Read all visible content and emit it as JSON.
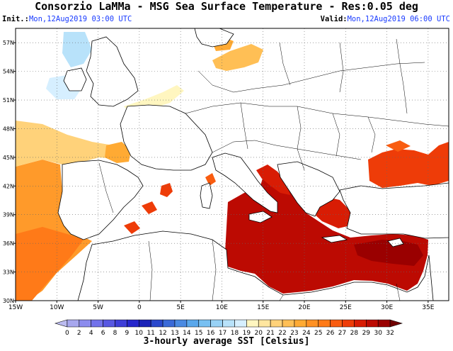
{
  "header": {
    "title": "Consorzio LaMMa - MSG Sea Surface Temperature - Res:0.05 deg",
    "init_label": "Init.:",
    "init_value": "Mon,12Aug2019 03:00 UTC",
    "valid_label": "Valid:",
    "valid_value": "Mon,12Aug2019 06:00 UTC"
  },
  "map": {
    "lon_ticks": [
      "15W",
      "10W",
      "5W",
      "0",
      "5E",
      "10E",
      "15E",
      "20E",
      "25E",
      "30E",
      "35E"
    ],
    "lat_ticks": [
      "57N",
      "54N",
      "51N",
      "48N",
      "45N",
      "42N",
      "39N",
      "36N",
      "33N",
      "30N"
    ],
    "grid": true,
    "coastline_color": "#000000",
    "land_color": "#ffffff"
  },
  "colorbar": {
    "labels": [
      "0",
      "2",
      "4",
      "6",
      "8",
      "9",
      "10",
      "11",
      "12",
      "13",
      "14",
      "15",
      "16",
      "17",
      "18",
      "19",
      "20",
      "21",
      "22",
      "23",
      "24",
      "25",
      "26",
      "27",
      "28",
      "29",
      "30",
      "32"
    ],
    "colors": [
      "#bcbcf0",
      "#a7a7ee",
      "#8c8cee",
      "#7272ea",
      "#5858e2",
      "#3e3ed8",
      "#2626cc",
      "#1a22b8",
      "#2a48cc",
      "#3a6ad8",
      "#4a8ae2",
      "#5aa8ec",
      "#78c0f2",
      "#98d2f6",
      "#b8e2fa",
      "#d6efff",
      "#fff6c0",
      "#ffe6a0",
      "#ffd27a",
      "#ffbf55",
      "#ffaa33",
      "#ff9124",
      "#ff7a18",
      "#f95c10",
      "#ee3c08",
      "#d81c04",
      "#bc0a02",
      "#9a0000",
      "#700000"
    ],
    "unit_label": "3-hourly average SST [Celsius]"
  }
}
